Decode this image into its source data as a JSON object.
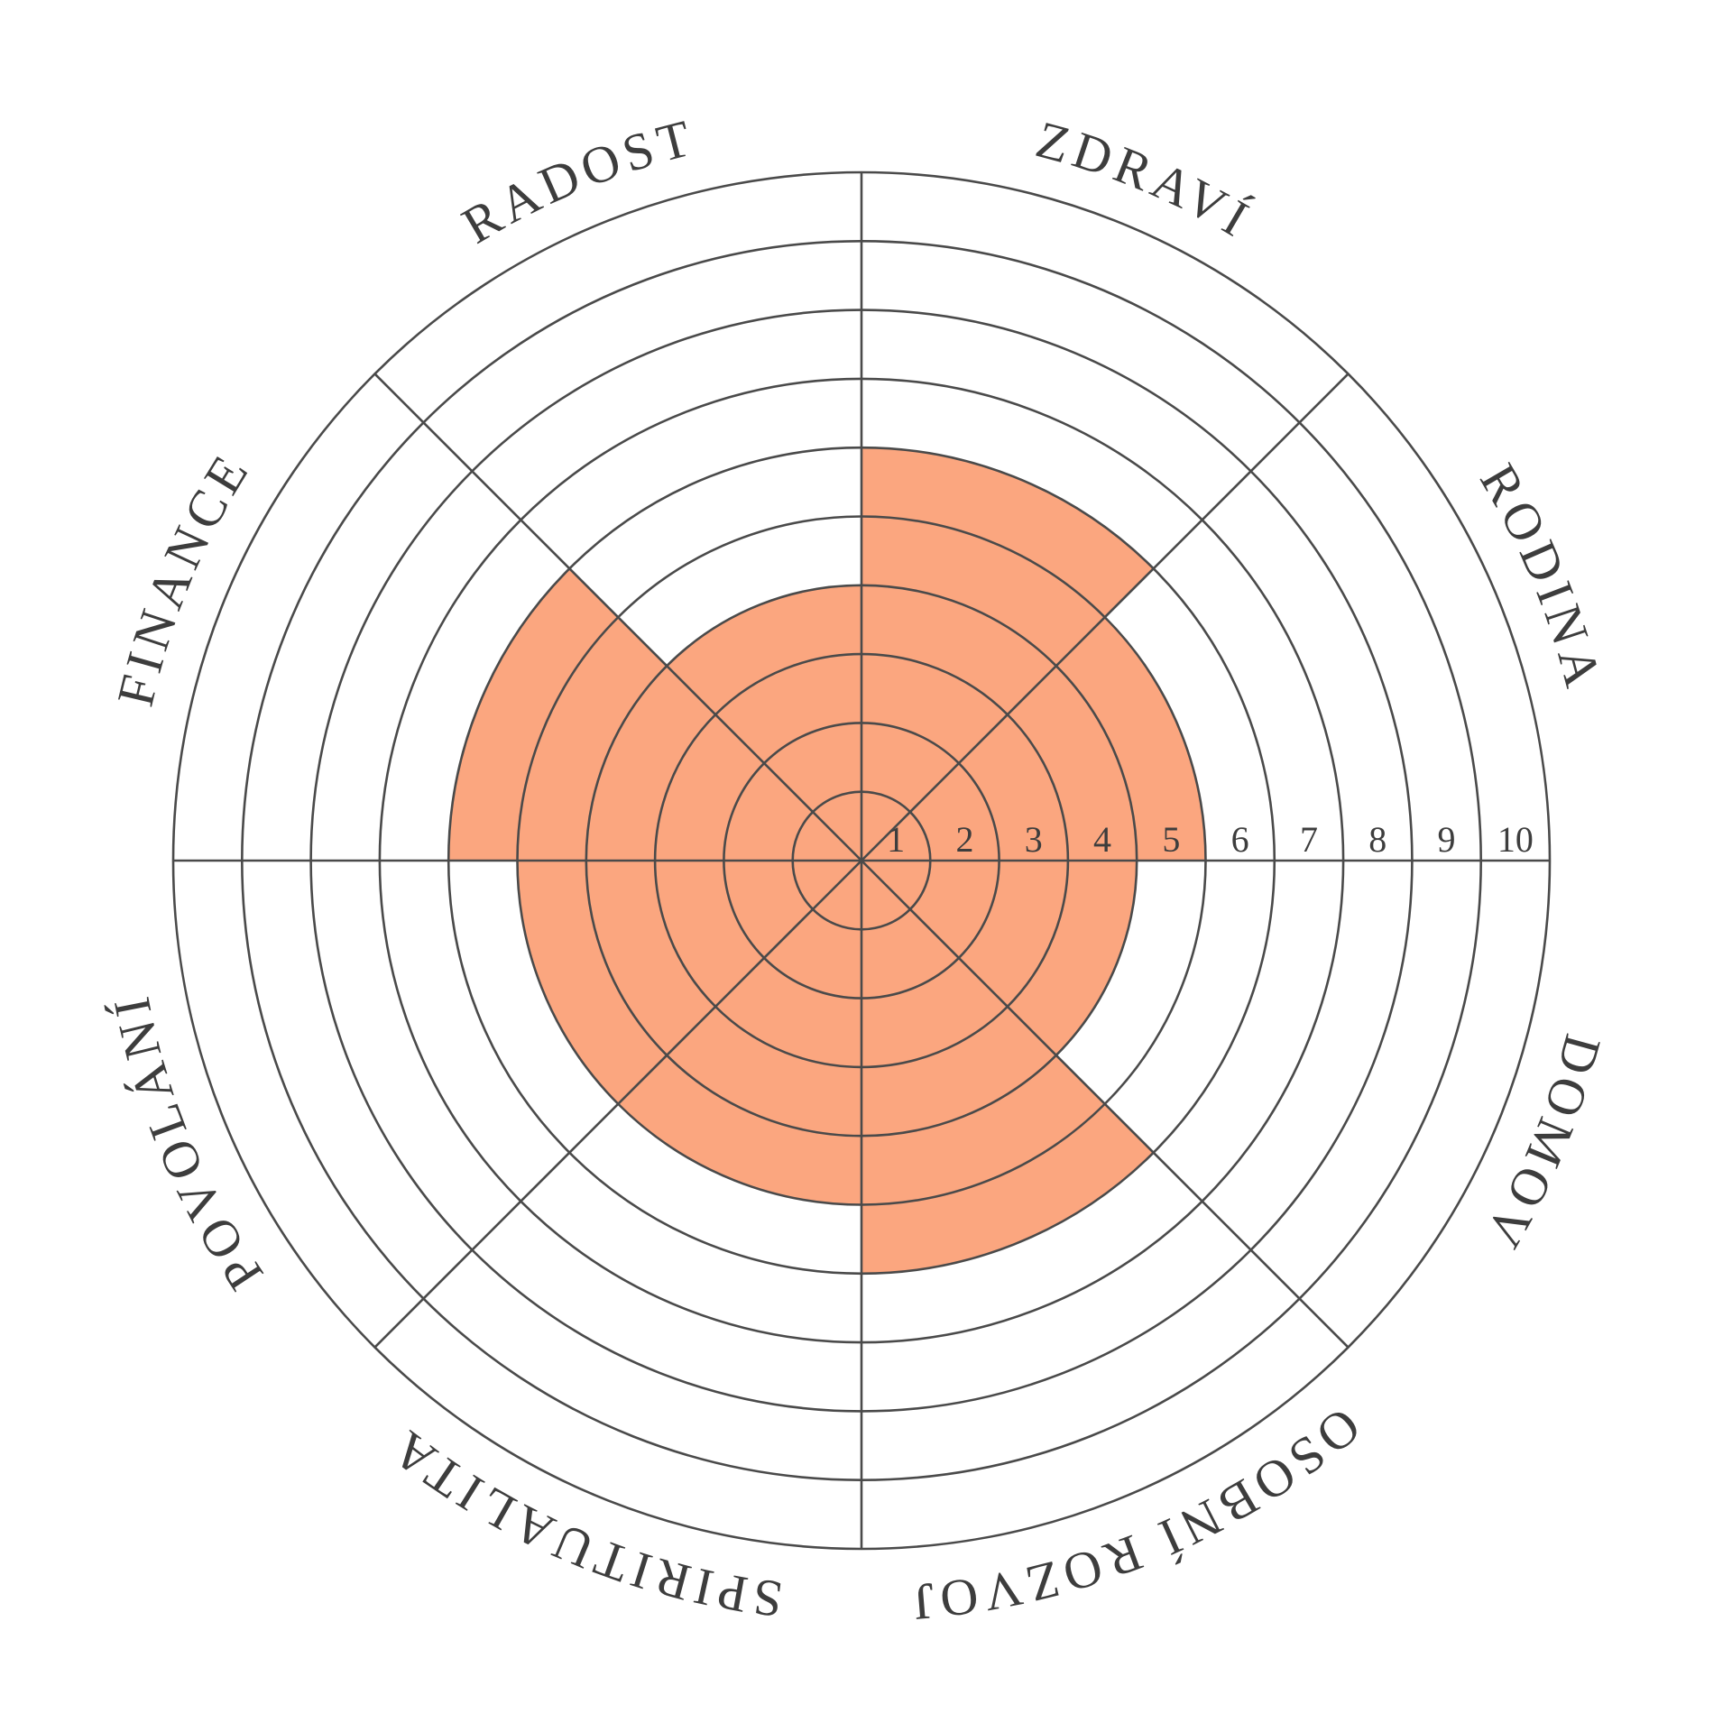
{
  "chart_data": {
    "type": "polar",
    "categories": [
      "ZDRAVÍ",
      "RODINA",
      "DOMOV",
      "OSOBNÍ ROZVOJ",
      "SPIRITUALITA",
      "POVOLÁNÍ",
      "FINANCE",
      "RADOST"
    ],
    "values": [
      6,
      5,
      4,
      6,
      5,
      5,
      6,
      4
    ],
    "color": "#fba67f",
    "rlim": [
      0,
      10
    ],
    "rticks": [
      1,
      2,
      3,
      4,
      5,
      6,
      7,
      8,
      9,
      10
    ],
    "grid": true
  }
}
